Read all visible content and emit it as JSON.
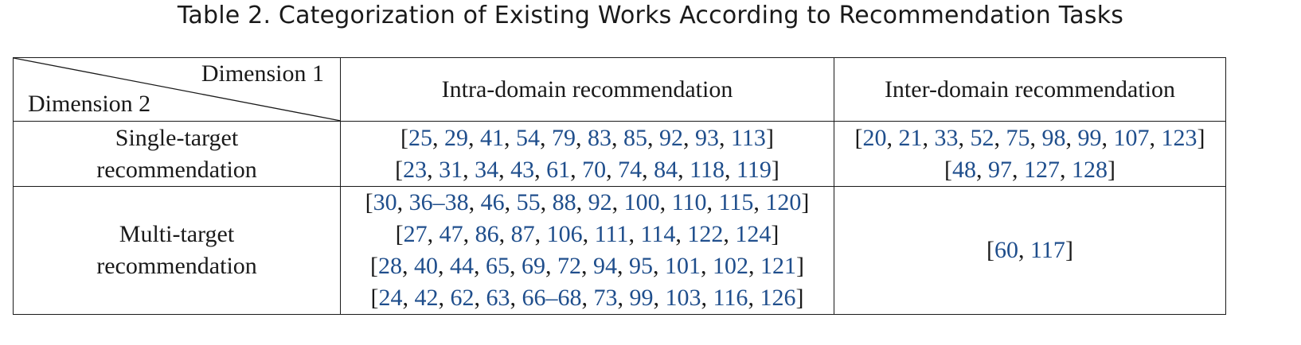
{
  "caption": "Table 2.  Categorization of Existing Works According to Recommendation Tasks",
  "table": {
    "corner": {
      "dimension1": "Dimension 1",
      "dimension2": "Dimension 2"
    },
    "columns": [
      "Intra-domain recommendation",
      "Inter-domain recommendation"
    ],
    "rows": [
      {
        "label_lines": [
          "Single-target",
          "recommendation"
        ],
        "intra": [
          [
            "25",
            "29",
            "41",
            "54",
            "79",
            "83",
            "85",
            "92",
            "93",
            "113"
          ],
          [
            "23",
            "31",
            "34",
            "43",
            "61",
            "70",
            "74",
            "84",
            "118",
            "119"
          ]
        ],
        "inter": [
          [
            "20",
            "21",
            "33",
            "52",
            "75",
            "98",
            "99",
            "107",
            "123"
          ],
          [
            "48",
            "97",
            "127",
            "128"
          ]
        ]
      },
      {
        "label_lines": [
          "Multi-target",
          "recommendation"
        ],
        "intra": [
          [
            "30",
            "36–38",
            "46",
            "55",
            "88",
            "92",
            "100",
            "110",
            "115",
            "120"
          ],
          [
            "27",
            "47",
            "86",
            "87",
            "106",
            "111",
            "114",
            "122",
            "124"
          ],
          [
            "28",
            "40",
            "44",
            "65",
            "69",
            "72",
            "94",
            "95",
            "101",
            "102",
            "121"
          ],
          [
            "24",
            "42",
            "62",
            "63",
            "66–68",
            "73",
            "99",
            "103",
            "116",
            "126"
          ]
        ],
        "inter": [
          [
            "60",
            "117"
          ]
        ]
      }
    ]
  },
  "colors": {
    "text": "#1a1a1a",
    "citation": "#1f4e8c",
    "border": "#1a1a1a"
  }
}
